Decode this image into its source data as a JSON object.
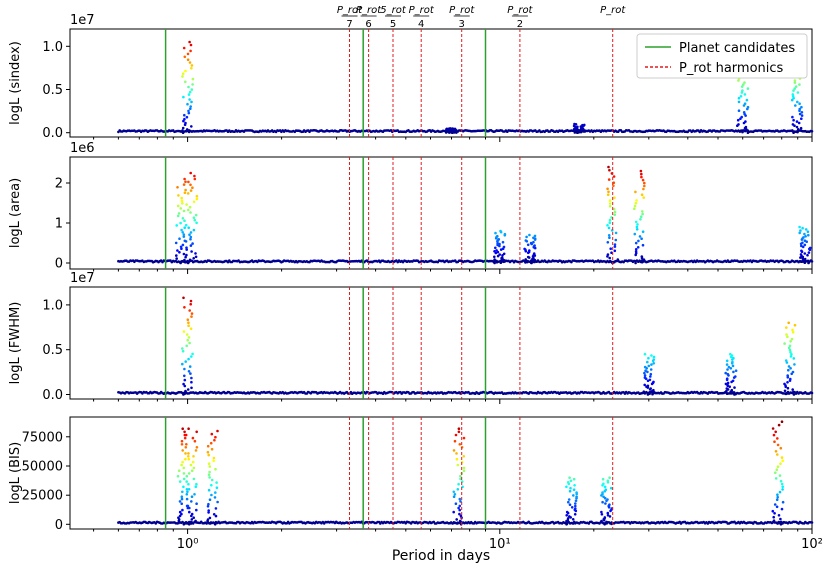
{
  "figure": {
    "xlabel": "Period in days",
    "legend": {
      "position": "top-right",
      "entries": [
        {
          "label": "Planet candidates",
          "color": "#2ca02c",
          "style": "solid"
        },
        {
          "label": "P_rot harmonics",
          "color": "#e41a1c",
          "style": "dashed"
        }
      ]
    }
  },
  "chart_data": [
    {
      "type": "scatter",
      "ylabel": "logL (sindex)",
      "offset_text": "1e7",
      "scale": 10000000,
      "xscale": "log",
      "xlim": [
        0.42,
        100
      ],
      "ylim": [
        -0.05,
        1.2
      ],
      "yticks": [
        0.0,
        0.5,
        1.0
      ],
      "ytick_labels": [
        "0.0",
        "0.5",
        "1.0"
      ],
      "peaks": [
        {
          "x": 1.0,
          "y": 1.05
        },
        {
          "x": 7.0,
          "y": 0.05
        },
        {
          "x": 18.0,
          "y": 0.1
        },
        {
          "x": 60.0,
          "y": 0.75
        },
        {
          "x": 90.0,
          "y": 0.75
        }
      ]
    },
    {
      "type": "scatter",
      "ylabel": "logL (area)",
      "offset_text": "1e6",
      "scale": 1000000,
      "xscale": "log",
      "xlim": [
        0.42,
        100
      ],
      "ylim": [
        -0.15,
        2.65
      ],
      "yticks": [
        0,
        1,
        2
      ],
      "ytick_labels": [
        "0",
        "1",
        "2"
      ],
      "peaks": [
        {
          "x": 0.95,
          "y": 2.1
        },
        {
          "x": 1.03,
          "y": 2.25
        },
        {
          "x": 10.0,
          "y": 0.8
        },
        {
          "x": 12.5,
          "y": 0.7
        },
        {
          "x": 23.0,
          "y": 2.4
        },
        {
          "x": 28.0,
          "y": 2.3
        },
        {
          "x": 95.0,
          "y": 0.9
        }
      ]
    },
    {
      "type": "scatter",
      "ylabel": "logL (FWHM)",
      "offset_text": "1e7",
      "scale": 10000000,
      "xscale": "log",
      "xlim": [
        0.42,
        100
      ],
      "ylim": [
        -0.05,
        1.2
      ],
      "yticks": [
        0.0,
        0.5,
        1.0
      ],
      "ytick_labels": [
        "0.0",
        "0.5",
        "1.0"
      ],
      "peaks": [
        {
          "x": 1.0,
          "y": 1.08
        },
        {
          "x": 30.0,
          "y": 0.45
        },
        {
          "x": 55.0,
          "y": 0.45
        },
        {
          "x": 85.0,
          "y": 0.8
        }
      ]
    },
    {
      "type": "scatter",
      "ylabel": "logL (BIS)",
      "offset_text": "",
      "scale": 1,
      "xscale": "log",
      "xlim": [
        0.42,
        100
      ],
      "ylim": [
        -4000,
        92000
      ],
      "yticks": [
        0,
        25000,
        50000,
        75000
      ],
      "ytick_labels": [
        "0",
        "25000",
        "50000",
        "75000"
      ],
      "peaks": [
        {
          "x": 0.97,
          "y": 82000
        },
        {
          "x": 1.03,
          "y": 82000
        },
        {
          "x": 1.2,
          "y": 80000
        },
        {
          "x": 7.4,
          "y": 82000
        },
        {
          "x": 17.0,
          "y": 40000
        },
        {
          "x": 22.0,
          "y": 40000
        },
        {
          "x": 78.0,
          "y": 88000
        }
      ]
    }
  ],
  "xaxis": {
    "major_ticks": [
      1,
      10,
      100
    ],
    "tick_labels": [
      "10⁰",
      "10¹",
      "10²"
    ]
  },
  "planet_candidates": [
    0.85,
    3.65,
    9.0
  ],
  "harmonics": [
    {
      "period": 3.3,
      "numerator": "P_rot",
      "denominator": "7"
    },
    {
      "period": 3.8,
      "numerator": "P_rot",
      "denominator": "6"
    },
    {
      "period": 4.55,
      "numerator": "5_rot",
      "denominator": "5"
    },
    {
      "period": 5.6,
      "numerator": "P_rot",
      "denominator": "4"
    },
    {
      "period": 7.55,
      "numerator": "P_rot",
      "denominator": "3"
    },
    {
      "period": 11.6,
      "numerator": "P_rot",
      "denominator": "2"
    },
    {
      "period": 23.0,
      "numerator": "P_rot",
      "denominator": ""
    }
  ]
}
